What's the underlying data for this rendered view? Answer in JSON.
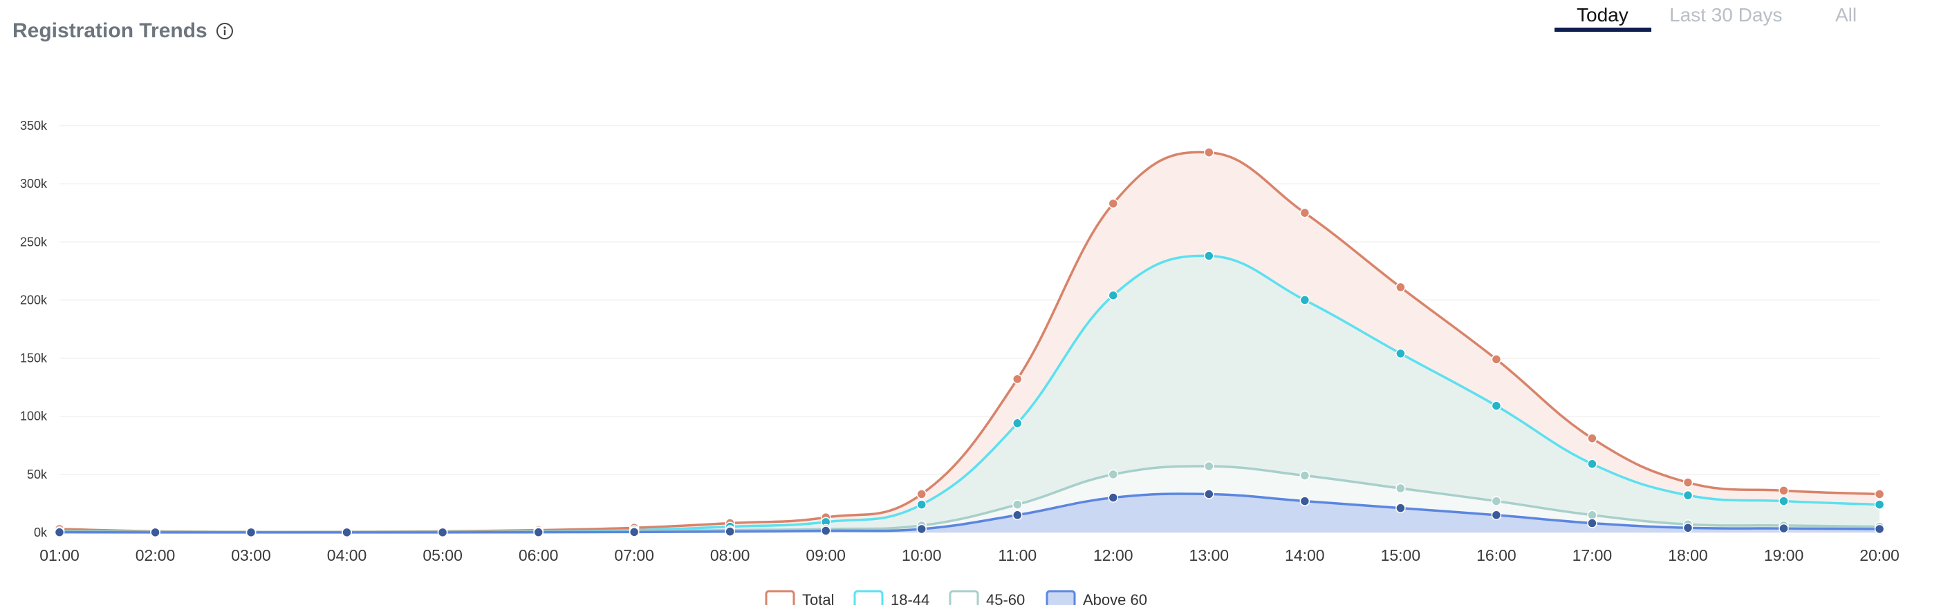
{
  "header": {
    "title": "Registration Trends",
    "info_icon": "info-icon"
  },
  "tabs": [
    {
      "label": "Today",
      "active": true
    },
    {
      "label": "Last 30 Days",
      "active": false
    },
    {
      "label": "All",
      "active": false
    }
  ],
  "colors": {
    "total": "#d8836a",
    "age_18_44": "#5de0f0",
    "age_45_60": "#a8cfc9",
    "above_60": "#5b86e0",
    "tab_underline": "#0d1e4f"
  },
  "chart_data": {
    "type": "area",
    "title": "Registration Trends",
    "xlabel": "",
    "ylabel": "",
    "x": [
      "01:00",
      "02:00",
      "03:00",
      "04:00",
      "05:00",
      "06:00",
      "07:00",
      "08:00",
      "09:00",
      "10:00",
      "11:00",
      "12:00",
      "13:00",
      "14:00",
      "15:00",
      "16:00",
      "17:00",
      "18:00",
      "19:00",
      "20:00"
    ],
    "yticks": [
      "0k",
      "50k",
      "100k",
      "150k",
      "200k",
      "250k",
      "300k",
      "350k"
    ],
    "ylim": [
      0,
      350000
    ],
    "grid": true,
    "legend_position": "bottom",
    "series": [
      {
        "name": "Total",
        "values": [
          3000,
          1000,
          500,
          500,
          1000,
          2000,
          4000,
          8000,
          13000,
          33000,
          132000,
          283000,
          327000,
          275000,
          211000,
          149000,
          81000,
          43000,
          36000,
          33000
        ]
      },
      {
        "name": "18-44",
        "values": [
          1000,
          500,
          300,
          300,
          500,
          800,
          2000,
          5000,
          9000,
          24000,
          94000,
          204000,
          238000,
          200000,
          154000,
          109000,
          59000,
          32000,
          27000,
          24000
        ]
      },
      {
        "name": "45-60",
        "values": [
          500,
          300,
          200,
          200,
          300,
          500,
          1000,
          2000,
          3000,
          6000,
          24000,
          50000,
          57000,
          49000,
          38000,
          27000,
          15000,
          7000,
          6000,
          5000
        ]
      },
      {
        "name": "Above 60",
        "values": [
          200,
          100,
          100,
          100,
          100,
          200,
          400,
          800,
          1500,
          3000,
          15000,
          30000,
          33000,
          27000,
          21000,
          15000,
          8000,
          4000,
          3500,
          3000
        ]
      }
    ]
  }
}
